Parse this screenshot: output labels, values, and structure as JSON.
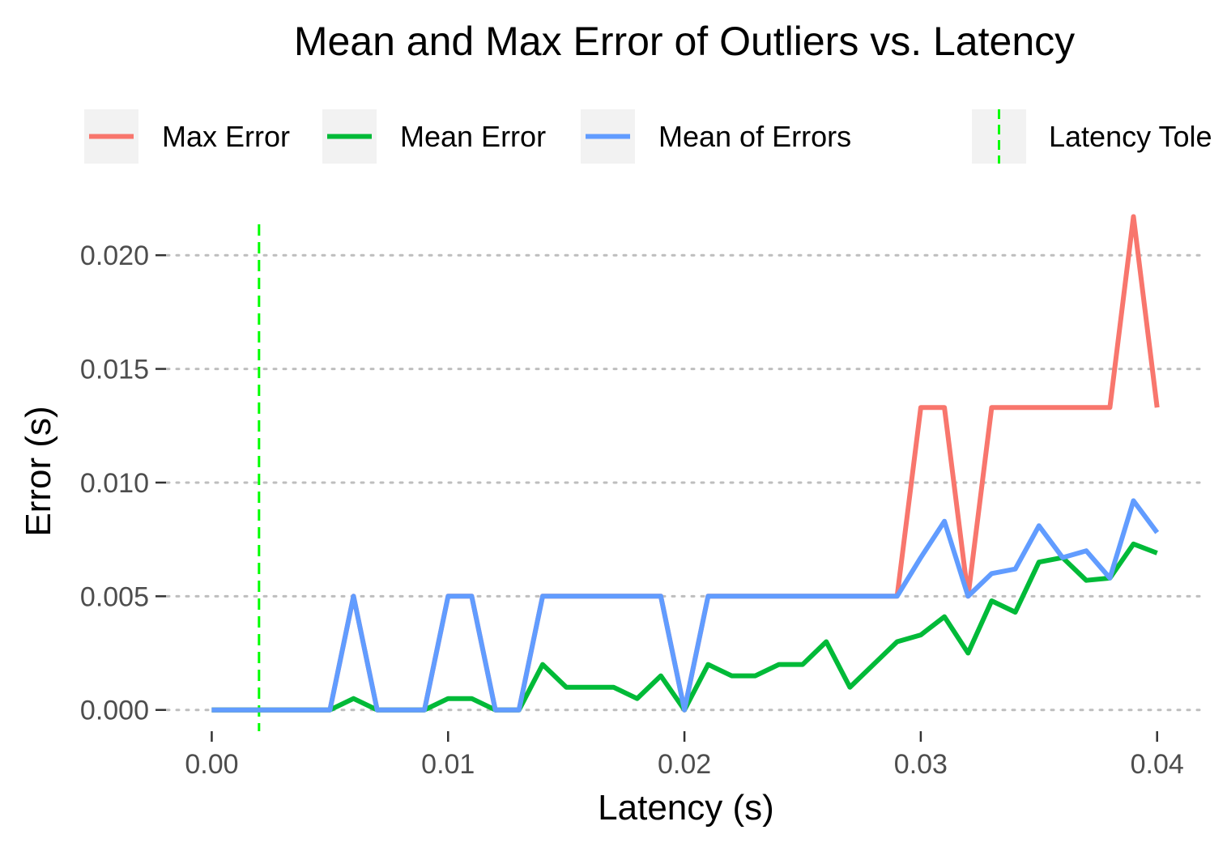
{
  "colors": {
    "max_error": "#F8766D",
    "mean_error": "#00BA38",
    "mean_of_errors": "#619CFF",
    "latency_tolerance": "#00FF00",
    "grid": "#BEBEBE",
    "tick_text": "#4D4D4D",
    "legend_key_bg": "#F2F2F2"
  },
  "chart_data": {
    "type": "line",
    "title": "Mean and Max Error of Outliers vs. Latency",
    "xlabel": "Latency (s)",
    "ylabel": "Error (s)",
    "xlim": [
      -0.0019,
      0.0421
    ],
    "ylim": [
      -0.0009,
      0.0225
    ],
    "x_ticks": [
      0,
      0.01,
      0.02,
      0.03,
      0.04
    ],
    "x_tick_labels": [
      "0.00",
      "0.01",
      "0.02",
      "0.03",
      "0.04"
    ],
    "y_ticks": [
      0,
      0.005,
      0.01,
      0.015,
      0.02
    ],
    "y_tick_labels": [
      "0.000",
      "0.005",
      "0.010",
      "0.015",
      "0.020"
    ],
    "grid": "horizontal dotted",
    "legend_position": "top",
    "x": [
      0,
      0.001,
      0.002,
      0.003,
      0.004,
      0.005,
      0.006,
      0.007,
      0.008,
      0.009,
      0.01,
      0.011,
      0.012,
      0.013,
      0.014,
      0.015,
      0.016,
      0.017,
      0.018,
      0.019,
      0.02,
      0.021,
      0.022,
      0.023,
      0.024,
      0.025,
      0.026,
      0.027,
      0.028,
      0.029,
      0.03,
      0.031,
      0.032,
      0.033,
      0.034,
      0.035,
      0.036,
      0.037,
      0.038,
      0.039,
      0.04
    ],
    "series": [
      {
        "name": "Max Error",
        "color_key": "max_error",
        "values": [
          0,
          0,
          0,
          0,
          0,
          0,
          0.005,
          0,
          0,
          0,
          0.005,
          0.005,
          0,
          0,
          0.005,
          0.005,
          0.005,
          0.005,
          0.005,
          0.005,
          0,
          0.005,
          0.005,
          0.005,
          0.005,
          0.005,
          0.005,
          0.005,
          0.005,
          0.005,
          0.0133,
          0.0133,
          0.005,
          0.0133,
          0.0133,
          0.0133,
          0.0133,
          0.0133,
          0.0133,
          0.0217,
          0.0133
        ]
      },
      {
        "name": "Mean Error",
        "color_key": "mean_error",
        "values": [
          0,
          0,
          0,
          0,
          0,
          0,
          0.0005,
          0,
          0,
          0,
          0.0005,
          0.0005,
          0,
          0,
          0.002,
          0.001,
          0.001,
          0.001,
          0.0005,
          0.0015,
          0,
          0.002,
          0.0015,
          0.0015,
          0.002,
          0.002,
          0.003,
          0.001,
          0.002,
          0.003,
          0.0033,
          0.0041,
          0.0025,
          0.0048,
          0.0043,
          0.0065,
          0.0067,
          0.0057,
          0.0058,
          0.0073,
          0.0069
        ]
      },
      {
        "name": "Mean of Errors",
        "color_key": "mean_of_errors",
        "values": [
          0,
          0,
          0,
          0,
          0,
          0,
          0.005,
          0,
          0,
          0,
          0.005,
          0.005,
          0,
          0,
          0.005,
          0.005,
          0.005,
          0.005,
          0.005,
          0.005,
          0,
          0.005,
          0.005,
          0.005,
          0.005,
          0.005,
          0.005,
          0.005,
          0.005,
          0.005,
          0.0067,
          0.0083,
          0.005,
          0.006,
          0.0062,
          0.0081,
          0.0067,
          0.007,
          0.0058,
          0.0092,
          0.0078
        ]
      }
    ],
    "vlines": [
      {
        "name": "Latency Tolerance",
        "legend_label": "Latency Tole",
        "x": 0.002,
        "color_key": "latency_tolerance",
        "style": "dashed"
      }
    ],
    "legend": [
      {
        "label": "Max Error",
        "kind": "line",
        "color_key": "max_error"
      },
      {
        "label": "Mean Error",
        "kind": "line",
        "color_key": "mean_error"
      },
      {
        "label": "Mean of Errors",
        "kind": "line",
        "color_key": "mean_of_errors"
      },
      {
        "label": "Latency Tole",
        "kind": "vline",
        "color_key": "latency_tolerance"
      }
    ]
  }
}
